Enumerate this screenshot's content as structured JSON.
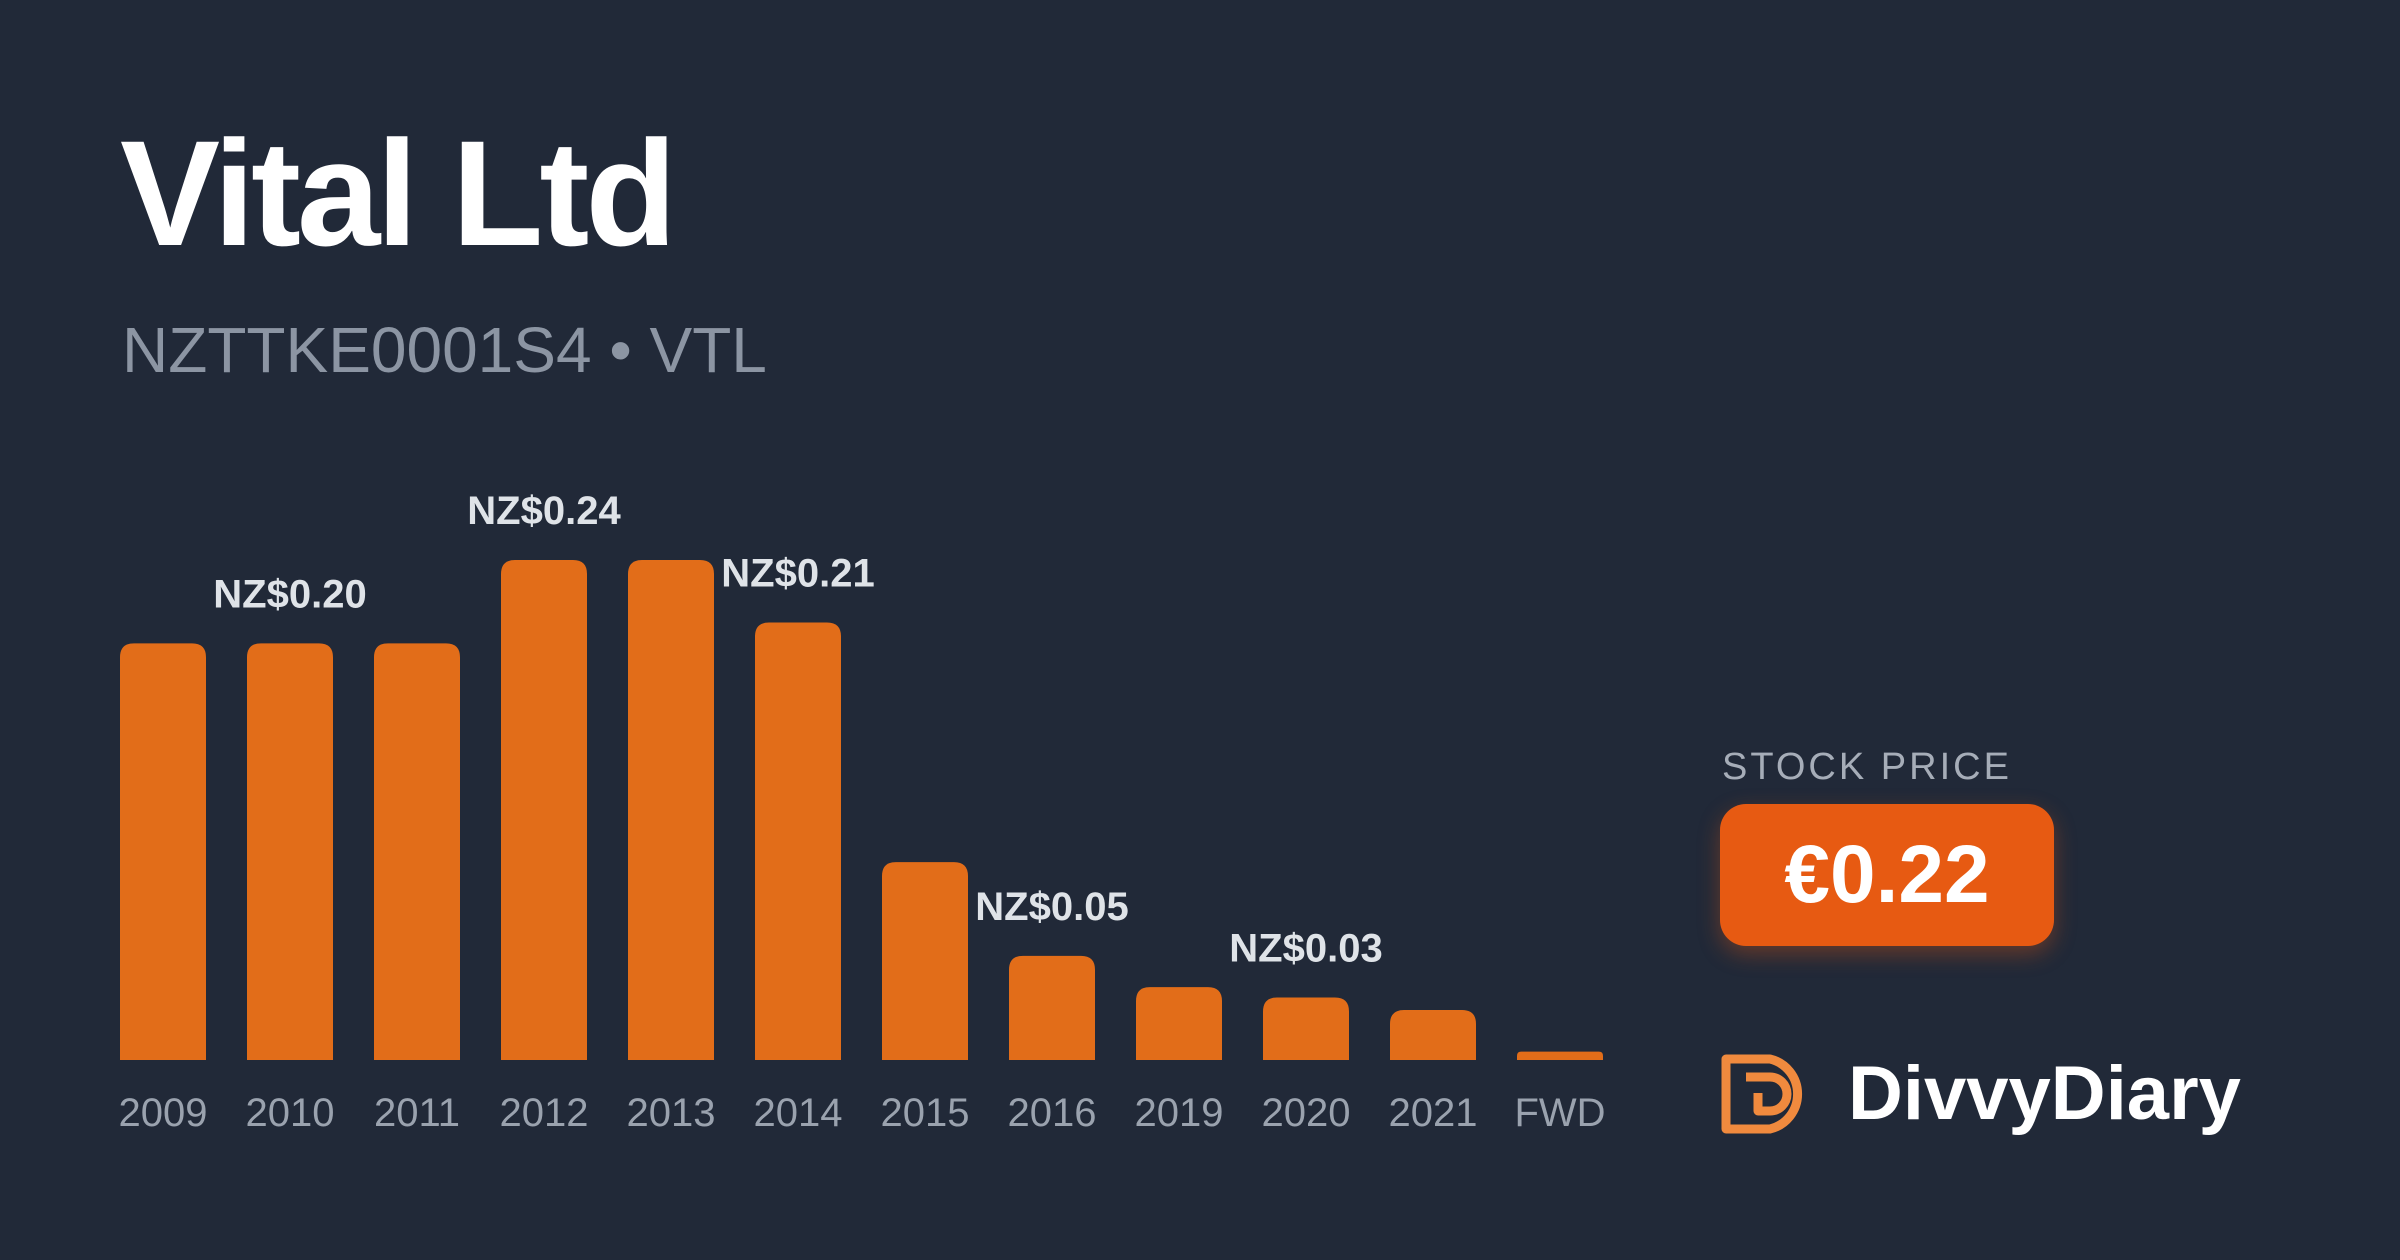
{
  "header": {
    "title": "Vital Ltd",
    "subtitle": "NZTTKE0001S4 • VTL"
  },
  "chart_data": {
    "type": "bar",
    "categories": [
      "2009",
      "2010",
      "2011",
      "2012",
      "2013",
      "2014",
      "2015",
      "2016",
      "2019",
      "2020",
      "2021",
      "FWD"
    ],
    "values": [
      0.2,
      0.2,
      0.2,
      0.24,
      0.24,
      0.21,
      0.095,
      0.05,
      0.035,
      0.03,
      0.024,
      0.004
    ],
    "data_labels": [
      {
        "index": 1,
        "text": "NZ$0.20"
      },
      {
        "index": 3,
        "text": "NZ$0.24"
      },
      {
        "index": 5,
        "text": "NZ$0.21"
      },
      {
        "index": 7,
        "text": "NZ$0.05"
      },
      {
        "index": 9,
        "text": "NZ$0.03"
      }
    ],
    "currency": "NZ$",
    "ylim": [
      0,
      0.24
    ],
    "grid": false,
    "bar_color": "#e26d19"
  },
  "stock_price": {
    "label": "STOCK PRICE",
    "value": "€0.22",
    "color": "#e75a12"
  },
  "brand": {
    "name": "DivvyDiary",
    "logo_icon": "divvydiary-logo-icon",
    "logo_color": "#f08a3e"
  }
}
